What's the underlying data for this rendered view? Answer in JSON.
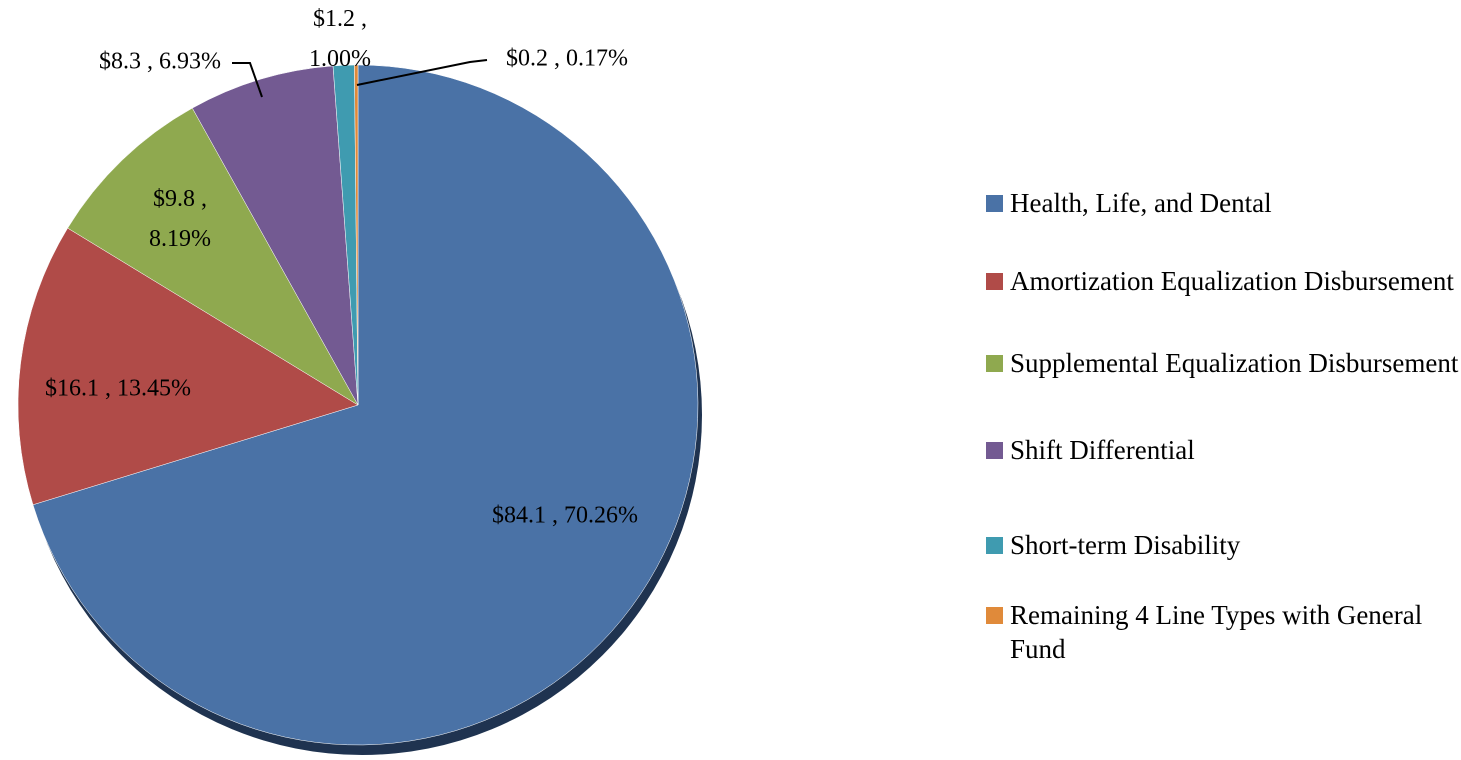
{
  "chart_data": {
    "type": "pie",
    "categories": [
      "Health, Life, and Dental",
      "Amortization Equalization Disbursement",
      "Supplemental Equalization Disbursement",
      "Shift Differential",
      "Short-term Disability",
      "Remaining 4 Line Types with General Fund"
    ],
    "values": [
      70.26,
      13.45,
      8.19,
      6.93,
      1.0,
      0.17
    ],
    "value_labels": [
      "$84.1 , 70.26%",
      "$16.1 , 13.45%",
      "$9.8 , 8.19%",
      "$8.3 , 6.93%",
      "$1.2 , 1.00%",
      "$0.2 , 0.17%"
    ],
    "colors": [
      "#4a72a6",
      "#b04b48",
      "#8fa94f",
      "#735a92",
      "#3f9bb0",
      "#e08a3a"
    ]
  }
}
